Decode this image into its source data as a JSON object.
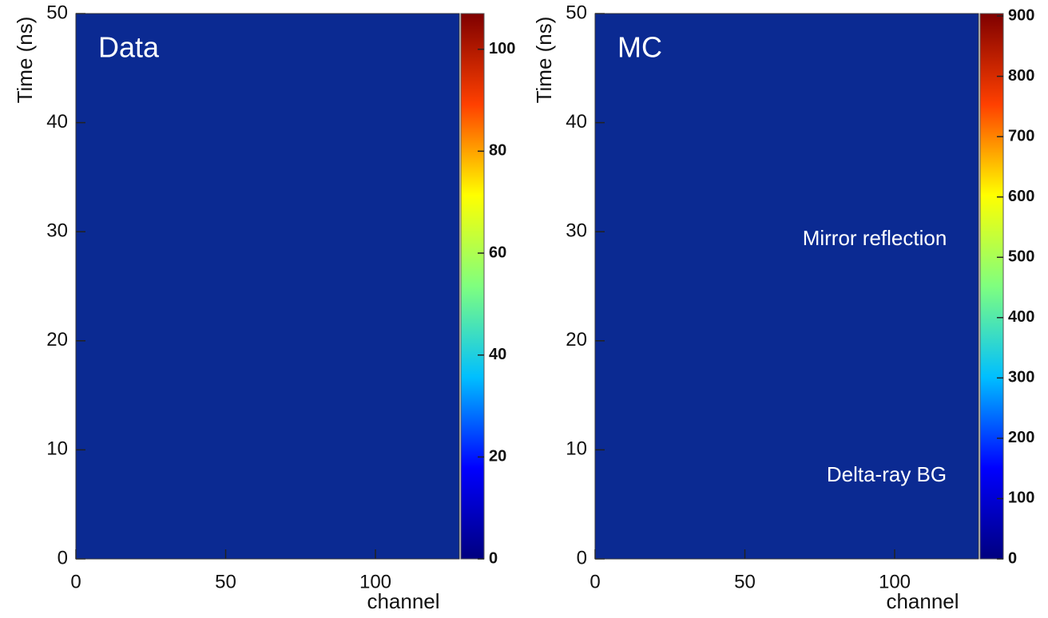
{
  "chart_data": [
    {
      "type": "heatmap",
      "label": "Data",
      "xlabel": "channel",
      "ylabel": "Time (ns)",
      "xlim": [
        0,
        128
      ],
      "xticks": [
        0,
        50,
        100
      ],
      "ylim": [
        0,
        50
      ],
      "yticks": [
        0,
        10,
        20,
        30,
        40,
        50
      ],
      "zlim": [
        0,
        107
      ],
      "zticks": [
        0,
        20,
        40,
        60,
        80,
        100
      ],
      "background": "#0b2a92",
      "colors": [
        "#00007f",
        "#0000ff",
        "#00bfff",
        "#7fff7f",
        "#ffff00",
        "#ff4000",
        "#7f0000"
      ]
    },
    {
      "type": "heatmap",
      "label": "MC",
      "xlabel": "channel",
      "ylabel": "Time (ns)",
      "xlim": [
        0,
        128
      ],
      "xticks": [
        0,
        50,
        100
      ],
      "ylim": [
        0,
        50
      ],
      "yticks": [
        0,
        10,
        20,
        30,
        40,
        50
      ],
      "zlim": [
        0,
        904
      ],
      "zticks": [
        0,
        100,
        200,
        300,
        400,
        500,
        600,
        700,
        800,
        900
      ],
      "background": "#0b2a92",
      "colors": [
        "#00007f",
        "#0000ff",
        "#00bfff",
        "#7fff7f",
        "#ffff00",
        "#ff4000",
        "#7f0000"
      ],
      "annotations": [
        "Mirror reflection",
        "Delta-ray BG"
      ]
    }
  ]
}
